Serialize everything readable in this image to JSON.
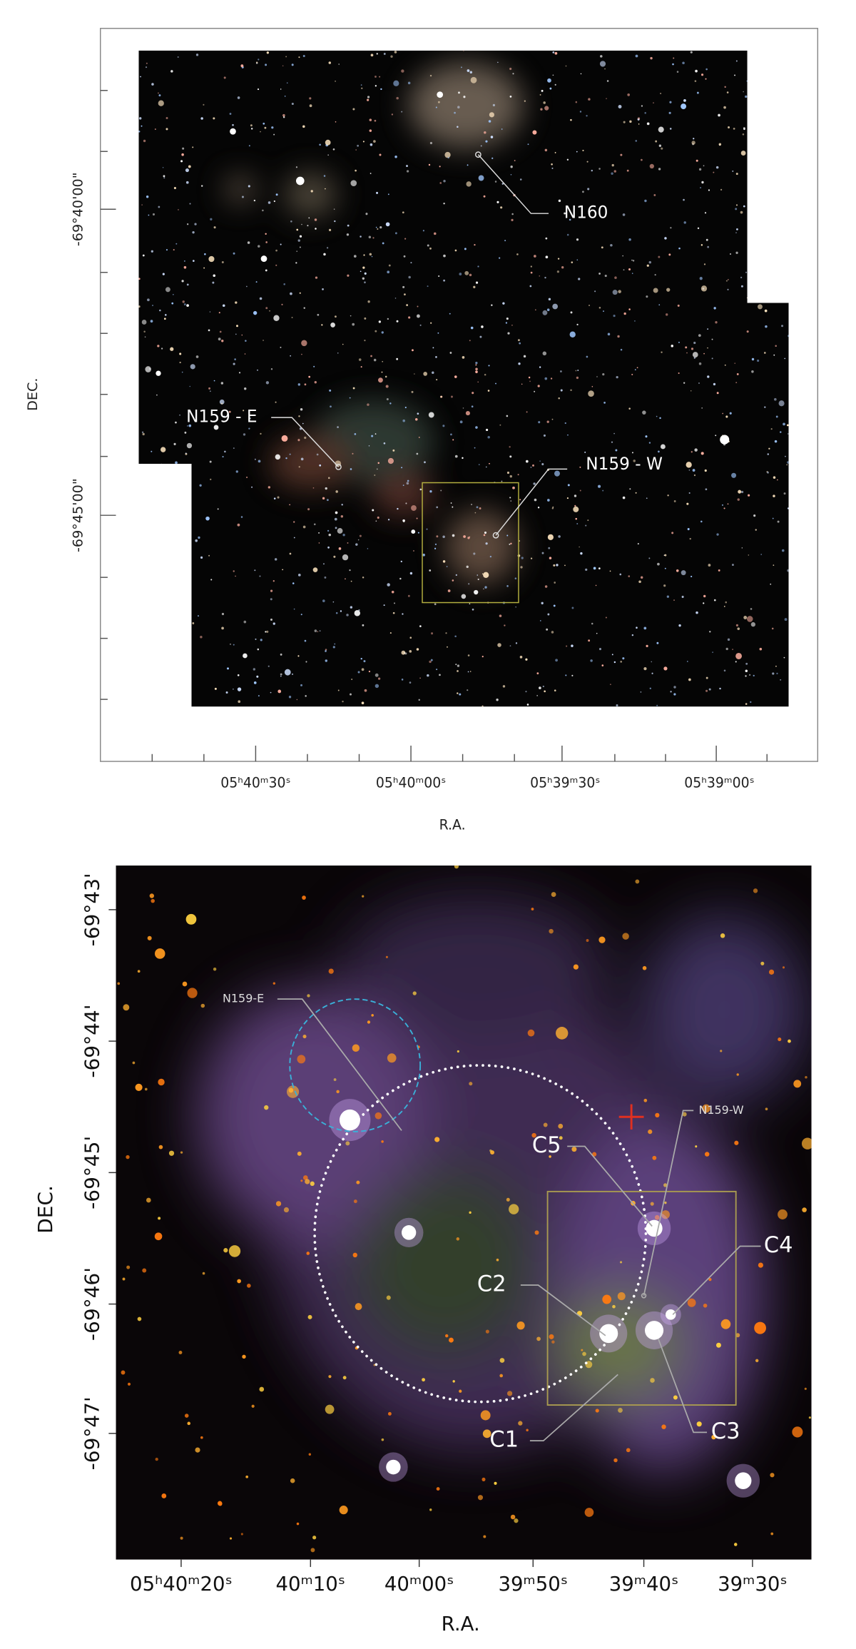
{
  "panel_top": {
    "y_label": "DEC.",
    "y_tick_labels": [
      "-69°40'00\"",
      "-69°45'00\""
    ],
    "x_tick_labels": [
      "05ʰ40ᵐ30ˢ",
      "05ʰ40ᵐ00ˢ",
      "05ʰ39ᵐ30ˢ",
      "05ʰ39ᵐ00ˢ"
    ],
    "x_label": "R.A.",
    "annotations": [
      "N160",
      "N159 - E",
      "N159 - W"
    ]
  },
  "panel_bottom": {
    "y_label": "DEC.",
    "y_tick_labels": [
      "-69°43'",
      "-69°44'",
      "-69°45'",
      "-69°46'",
      "-69°47'"
    ],
    "x_tick_labels": [
      "05ʰ40ᵐ20ˢ",
      "40ᵐ10ˢ",
      "40ᵐ00ˢ",
      "39ᵐ50ˢ",
      "39ᵐ40ˢ",
      "39ᵐ30ˢ"
    ],
    "x_label": "R.A.",
    "annotations": [
      "N159-E",
      "N159-W",
      "C5",
      "C4",
      "C2",
      "C1",
      "C3"
    ]
  }
}
